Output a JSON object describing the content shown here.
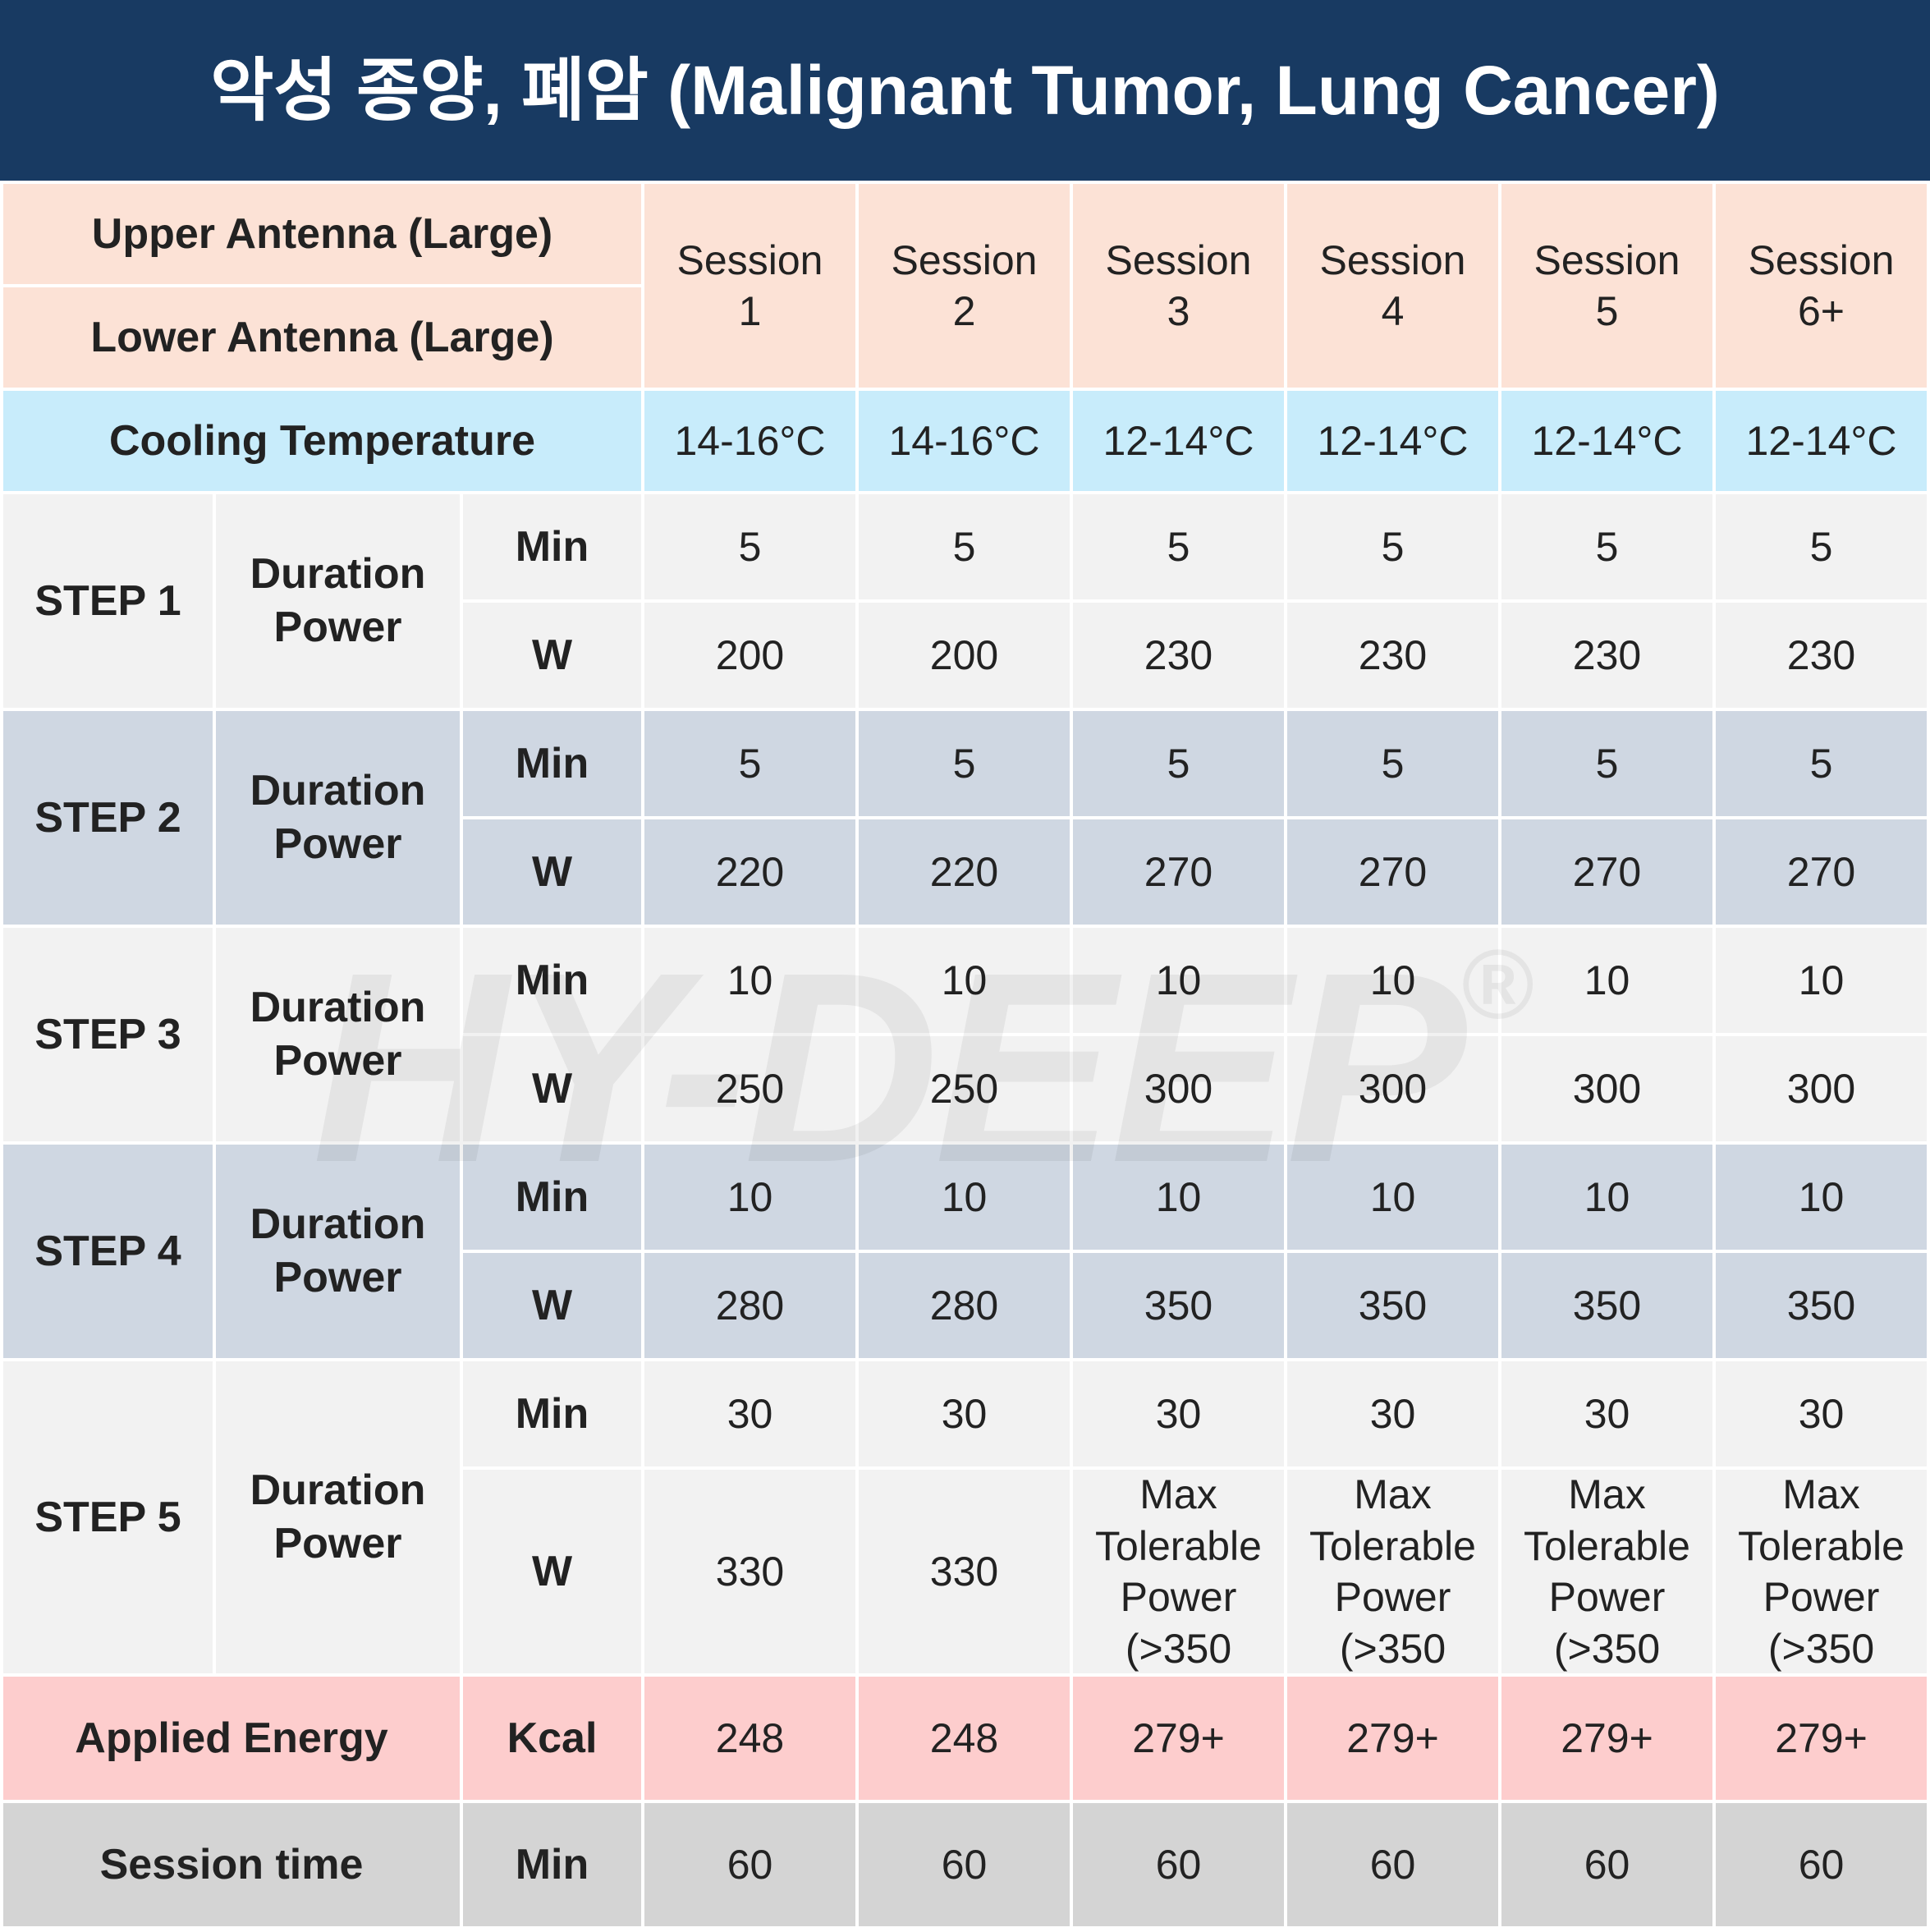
{
  "title": "악성 종양, 폐암 (Malignant Tumor, Lung Cancer)",
  "header": {
    "upper": "Upper Antenna (Large)",
    "lower": "Lower Antenna (Large)",
    "sessions": [
      "Session 1",
      "Session 2",
      "Session 3",
      "Session 4",
      "Session 5",
      "Session 6+"
    ]
  },
  "cooling": {
    "label": "Cooling Temperature",
    "values": [
      "14-16°C",
      "14-16°C",
      "12-14°C",
      "12-14°C",
      "12-14°C",
      "12-14°C"
    ]
  },
  "steps": [
    {
      "label": "STEP 1",
      "name": "Duration Power",
      "units": [
        "Min",
        "W"
      ],
      "rows": [
        [
          5,
          5,
          5,
          5,
          5,
          5
        ],
        [
          200,
          200,
          230,
          230,
          230,
          230
        ]
      ]
    },
    {
      "label": "STEP 2",
      "name": "Duration Power",
      "units": [
        "Min",
        "W"
      ],
      "rows": [
        [
          5,
          5,
          5,
          5,
          5,
          5
        ],
        [
          220,
          220,
          270,
          270,
          270,
          270
        ]
      ]
    },
    {
      "label": "STEP 3",
      "name": "Duration Power",
      "units": [
        "Min",
        "W"
      ],
      "rows": [
        [
          10,
          10,
          10,
          10,
          10,
          10
        ],
        [
          250,
          250,
          300,
          300,
          300,
          300
        ]
      ]
    },
    {
      "label": "STEP 4",
      "name": "Duration Power",
      "units": [
        "Min",
        "W"
      ],
      "rows": [
        [
          10,
          10,
          10,
          10,
          10,
          10
        ],
        [
          280,
          280,
          350,
          350,
          350,
          350
        ]
      ]
    },
    {
      "label": "STEP 5",
      "name": "Duration Power",
      "units": [
        "Min",
        "W"
      ],
      "rows": [
        [
          30,
          30,
          30,
          30,
          30,
          30
        ],
        [
          330,
          330,
          "Max Tolerable Power (>350",
          "Max Tolerable Power (>350",
          "Max Tolerable Power (>350",
          "Max Tolerable Power (>350"
        ]
      ]
    }
  ],
  "energy": {
    "label": "Applied Energy",
    "unit": "Kcal",
    "values": [
      248,
      248,
      "279+",
      "279+",
      "279+",
      "279+"
    ]
  },
  "session_time": {
    "label": "Session time",
    "unit": "Min",
    "values": [
      60,
      60,
      60,
      60,
      60,
      60
    ]
  },
  "watermark": {
    "text": "HY-DEEP",
    "mark": "®"
  }
}
